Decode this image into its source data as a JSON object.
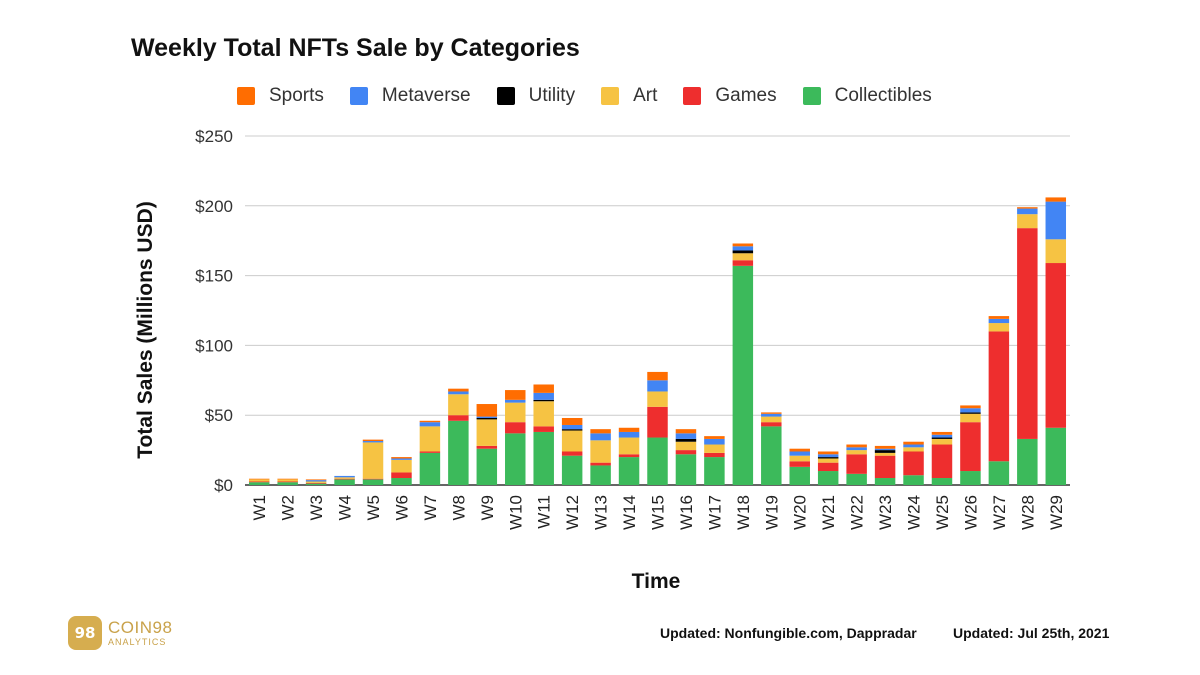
{
  "chart_data": {
    "type": "bar",
    "stacked": true,
    "title": "Weekly Total NFTs Sale by Categories",
    "xlabel": "Time",
    "ylabel": "Total Sales (Millions USD)",
    "ylim": [
      0,
      250
    ],
    "yticks": [
      0,
      50,
      100,
      150,
      200,
      250
    ],
    "ytick_labels": [
      "$0",
      "$50",
      "$100",
      "$150",
      "$200",
      "$250"
    ],
    "grid": true,
    "legend_position": "top",
    "categories": [
      "W1",
      "W2",
      "W3",
      "W4",
      "W5",
      "W6",
      "W7",
      "W8",
      "W9",
      "W10",
      "W11",
      "W12",
      "W13",
      "W14",
      "W15",
      "W16",
      "W17",
      "W18",
      "W19",
      "W20",
      "W21",
      "W22",
      "W23",
      "W24",
      "W25",
      "W26",
      "W27",
      "W28",
      "W29"
    ],
    "series": [
      {
        "name": "Collectibles",
        "color": "#3cba5b",
        "values": [
          2,
          2,
          1,
          4,
          4,
          5,
          23,
          46,
          26,
          37,
          38,
          21,
          14,
          20,
          34,
          22,
          20,
          157,
          42,
          13,
          10,
          8,
          5,
          7,
          5,
          10,
          17,
          33,
          41
        ]
      },
      {
        "name": "Games",
        "color": "#ee2e2e",
        "values": [
          0.5,
          0.5,
          0.5,
          0.5,
          0.5,
          4,
          1,
          4,
          2,
          8,
          4,
          3,
          2,
          2,
          22,
          3,
          3,
          4,
          3,
          4,
          6,
          14,
          16,
          17,
          24,
          35,
          93,
          151,
          118
        ]
      },
      {
        "name": "Art",
        "color": "#f6c343",
        "values": [
          1.5,
          1.5,
          1,
          1,
          26,
          9,
          18,
          15,
          19,
          14,
          18,
          15,
          16,
          12,
          11,
          6,
          6,
          5,
          4,
          4,
          3,
          3,
          2,
          3,
          4,
          6,
          6,
          10,
          17
        ]
      },
      {
        "name": "Utility",
        "color": "#000000",
        "values": [
          0,
          0,
          0,
          0,
          0,
          0,
          0,
          0,
          1,
          0,
          1,
          1,
          0,
          0,
          0,
          2,
          0,
          2,
          0,
          0,
          1,
          0,
          2,
          0,
          1,
          1,
          0,
          0,
          0
        ]
      },
      {
        "name": "Metaverse",
        "color": "#4285f4",
        "values": [
          0,
          0,
          1,
          1,
          1,
          1,
          3,
          2,
          1,
          2,
          5,
          3,
          5,
          4,
          8,
          4,
          4,
          3,
          2,
          3,
          2,
          2,
          1,
          2,
          2,
          3,
          3,
          4,
          27
        ]
      },
      {
        "name": "Sports",
        "color": "#ff6d01",
        "values": [
          0.5,
          0.5,
          0.5,
          0,
          1,
          1,
          1,
          2,
          9,
          7,
          6,
          5,
          3,
          3,
          6,
          3,
          2,
          2,
          1,
          2,
          2,
          2,
          2,
          2,
          2,
          2,
          2,
          1,
          3
        ]
      }
    ],
    "legend_order": [
      "Sports",
      "Metaverse",
      "Utility",
      "Art",
      "Games",
      "Collectibles"
    ]
  },
  "footer": {
    "source": "Updated: Nonfungible.com, Dappradar",
    "date": "Updated: Jul 25th, 2021"
  },
  "logo": {
    "mark": "98",
    "name": "COIN98",
    "sub": "ANALYTICS"
  }
}
